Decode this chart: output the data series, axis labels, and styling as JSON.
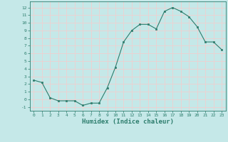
{
  "xlabel": "Humidex (Indice chaleur)",
  "x": [
    0,
    1,
    2,
    3,
    4,
    5,
    6,
    7,
    8,
    9,
    10,
    11,
    12,
    13,
    14,
    15,
    16,
    17,
    18,
    19,
    20,
    21,
    22,
    23
  ],
  "y": [
    2.5,
    2.2,
    0.2,
    -0.2,
    -0.2,
    -0.2,
    -0.8,
    -0.5,
    -0.5,
    1.5,
    4.2,
    7.5,
    9.0,
    9.8,
    9.8,
    9.2,
    11.5,
    12.0,
    11.5,
    10.8,
    9.5,
    7.5,
    7.5,
    6.5
  ],
  "line_color": "#2d7d6d",
  "marker_color": "#2d7d6d",
  "bg_color": "#c5e8e8",
  "grid_color": "#f0d0d0",
  "tick_color": "#2d7d6d",
  "label_color": "#2d7d6d",
  "ylim": [
    -1.5,
    12.8
  ],
  "xlim": [
    -0.5,
    23.5
  ],
  "yticks": [
    -1,
    0,
    1,
    2,
    3,
    4,
    5,
    6,
    7,
    8,
    9,
    10,
    11,
    12
  ],
  "xticks": [
    0,
    1,
    2,
    3,
    4,
    5,
    6,
    7,
    8,
    9,
    10,
    11,
    12,
    13,
    14,
    15,
    16,
    17,
    18,
    19,
    20,
    21,
    22,
    23
  ]
}
